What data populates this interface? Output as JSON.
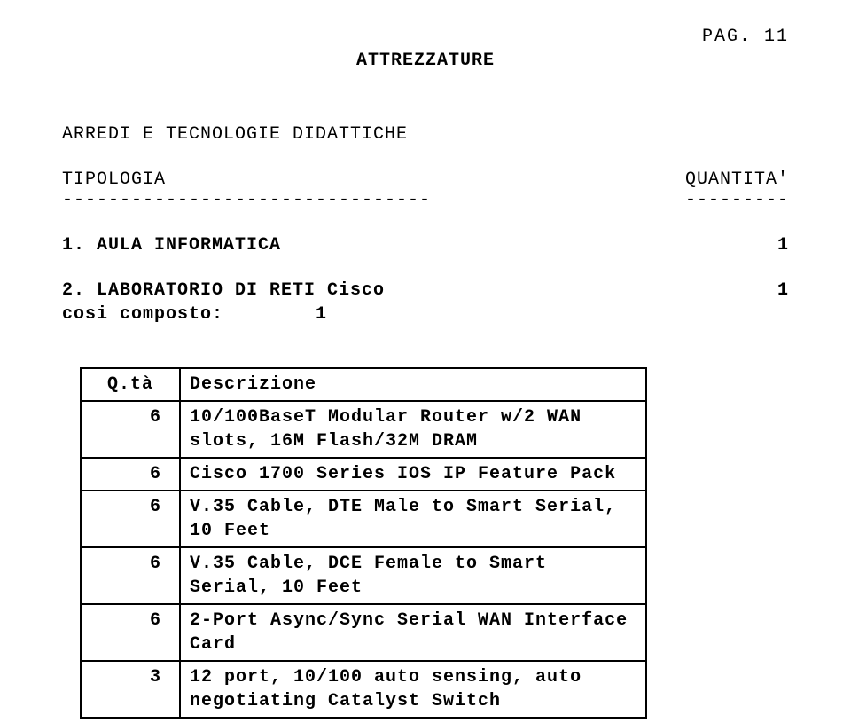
{
  "page_label": "PAG. 11",
  "title": "ATTREZZATURE",
  "subtitle": "ARREDI E TECNOLOGIE DIDATTICHE",
  "columns": {
    "left": "TIPOLOGIA",
    "right": "QUANTITA'"
  },
  "dashes": {
    "left": "--------------------------------",
    "right": "---------"
  },
  "items": [
    {
      "label": "1. AULA INFORMATICA",
      "qty": "1"
    },
    {
      "label": "2. LABORATORIO DI RETI Cisco",
      "qty": "1"
    }
  ],
  "cosi_label": "cosi composto:",
  "cosi_qty_inline": "        1",
  "table": {
    "headers": {
      "qta": "Q.tà",
      "desc": "Descrizione"
    },
    "rows": [
      {
        "qta": "6",
        "desc": "10/100BaseT Modular Router w/2 WAN slots, 16M Flash/32M DRAM"
      },
      {
        "qta": "6",
        "desc": "Cisco 1700 Series IOS IP Feature Pack"
      },
      {
        "qta": "6",
        "desc": "V.35 Cable, DTE Male to Smart Serial, 10 Feet"
      },
      {
        "qta": "6",
        "desc": "V.35 Cable, DCE Female to Smart Serial, 10 Feet"
      },
      {
        "qta": "6",
        "desc": "2-Port Async/Sync Serial WAN Interface Card"
      },
      {
        "qta": "3",
        "desc": "12 port, 10/100 auto sensing, auto negotiating Catalyst Switch"
      }
    ]
  }
}
